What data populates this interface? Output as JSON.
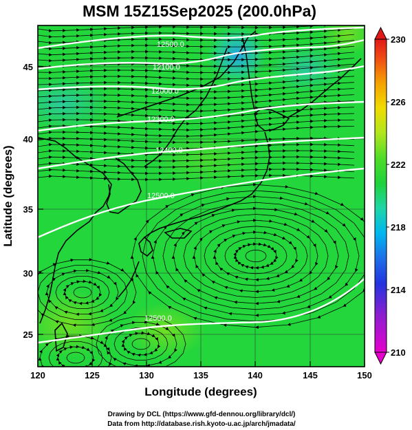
{
  "title": "MSM 15Z15Sep2025 (200.0hPa)",
  "xaxis": {
    "label": "Longitude (degrees)",
    "ticks": [
      "120",
      "125",
      "130",
      "135",
      "140",
      "145",
      "150"
    ],
    "range": [
      120,
      150
    ]
  },
  "yaxis": {
    "label": "Latitude  (degrees)",
    "ticks": [
      "25",
      "30",
      "35",
      "40",
      "45"
    ],
    "range": [
      22.4,
      47.6
    ]
  },
  "colorbar": {
    "ticks": [
      "210",
      "214",
      "218",
      "222",
      "226",
      "230"
    ],
    "range": [
      210,
      230
    ]
  },
  "contour_labels": [
    "12500.0",
    "12100.0",
    "12000.0",
    "12300.0",
    "12400.0",
    "12500.0",
    "12500.0"
  ],
  "credits": {
    "line1": "Drawing by DCL (https://www.gfd‐dennou.org/library/dcl/)",
    "line2": "Data from http://database.rish.kyoto‐u.ac.jp/arch/jmadata/"
  },
  "colors": {
    "contour": "#ffffff",
    "streamline": "#000000",
    "background_green": "#22d63c"
  }
}
